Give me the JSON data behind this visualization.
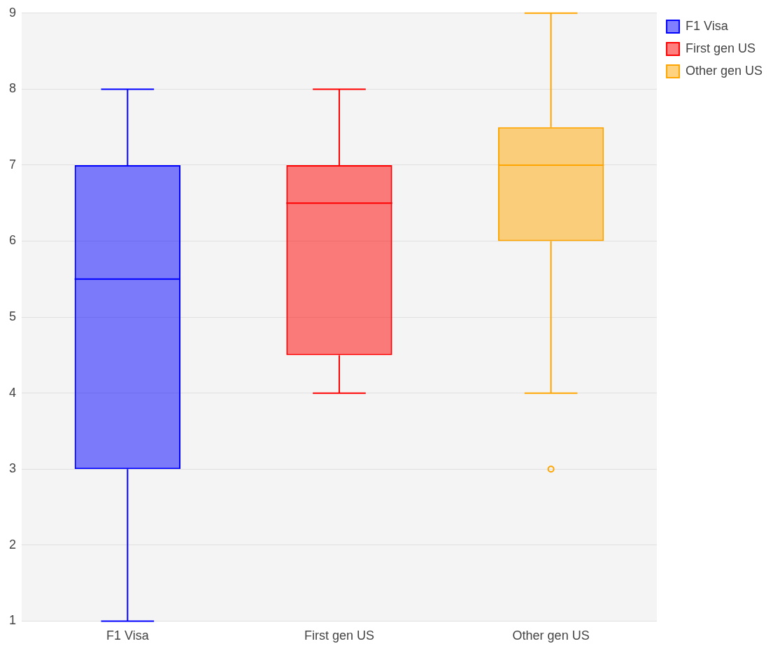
{
  "chart_data": {
    "type": "box",
    "categories": [
      "F1 Visa",
      "First gen US",
      "Other gen US"
    ],
    "series": [
      {
        "name": "F1 Visa",
        "color": "#0000ff",
        "boxes": [
          {
            "low": 1,
            "q1": 3,
            "median": 5.5,
            "q3": 7,
            "high": 8
          },
          null,
          null
        ]
      },
      {
        "name": "First gen US",
        "color": "#ff0000",
        "boxes": [
          null,
          {
            "low": 4,
            "q1": 4.5,
            "median": 6.5,
            "q3": 7,
            "high": 8
          },
          null
        ]
      },
      {
        "name": "Other gen US",
        "color": "#ffa500",
        "boxes": [
          null,
          null,
          {
            "low": 4,
            "q1": 6,
            "median": 7,
            "q3": 7.5,
            "high": 9,
            "outliers": [
              3
            ]
          }
        ]
      }
    ],
    "ylim": [
      1,
      9
    ],
    "yticks": [
      1,
      2,
      3,
      4,
      5,
      6,
      7,
      8,
      9
    ],
    "grid": "y",
    "legend": "top right"
  }
}
